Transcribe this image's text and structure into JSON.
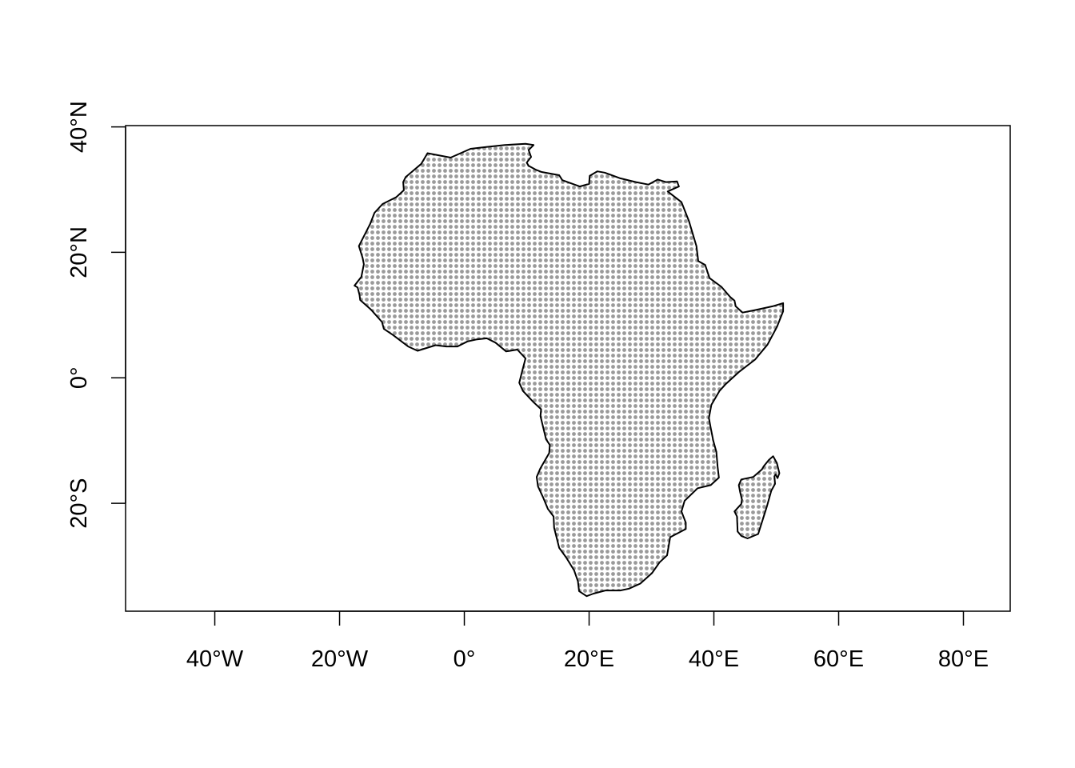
{
  "map": {
    "projection": "longitude-latitude",
    "x_range_degrees": [
      -54.3,
      87.5
    ],
    "y_range_degrees": [
      -37.2,
      40.2
    ],
    "fill_pattern": "dotted",
    "fill_color": "#9a9a9a",
    "outline_color": "#000000",
    "regions": [
      "Africa",
      "Madagascar"
    ],
    "x_ticks": [
      {
        "value": -40,
        "label": "40°W"
      },
      {
        "value": -20,
        "label": "20°W"
      },
      {
        "value": 0,
        "label": "0°"
      },
      {
        "value": 20,
        "label": "20°E"
      },
      {
        "value": 40,
        "label": "40°E"
      },
      {
        "value": 60,
        "label": "60°E"
      },
      {
        "value": 80,
        "label": "80°E"
      }
    ],
    "y_ticks": [
      {
        "value": 40,
        "label": "40°N"
      },
      {
        "value": 20,
        "label": "20°N"
      },
      {
        "value": 0,
        "label": "0°"
      },
      {
        "value": -20,
        "label": "20°S"
      }
    ],
    "africa_outline": [
      [
        -5.9,
        35.8
      ],
      [
        -2.2,
        35.1
      ],
      [
        1.0,
        36.5
      ],
      [
        3.5,
        36.8
      ],
      [
        6.5,
        37.1
      ],
      [
        9.8,
        37.3
      ],
      [
        11.1,
        37.1
      ],
      [
        10.3,
        36.3
      ],
      [
        10.7,
        35.2
      ],
      [
        10.0,
        34.3
      ],
      [
        10.3,
        33.8
      ],
      [
        11.4,
        33.2
      ],
      [
        12.4,
        32.8
      ],
      [
        15.2,
        32.3
      ],
      [
        15.7,
        31.5
      ],
      [
        18.5,
        30.5
      ],
      [
        20.0,
        30.9
      ],
      [
        20.1,
        32.2
      ],
      [
        21.3,
        32.9
      ],
      [
        22.5,
        32.7
      ],
      [
        25.0,
        31.8
      ],
      [
        27.5,
        31.2
      ],
      [
        29.5,
        30.8
      ],
      [
        31.0,
        31.6
      ],
      [
        32.3,
        31.2
      ],
      [
        34.1,
        31.3
      ],
      [
        34.4,
        30.5
      ],
      [
        32.6,
        29.7
      ],
      [
        34.8,
        28.0
      ],
      [
        36.0,
        25.0
      ],
      [
        37.2,
        21.0
      ],
      [
        37.5,
        18.6
      ],
      [
        38.6,
        18.0
      ],
      [
        39.3,
        15.9
      ],
      [
        41.2,
        14.5
      ],
      [
        42.6,
        12.9
      ],
      [
        43.3,
        12.3
      ],
      [
        43.5,
        11.4
      ],
      [
        44.6,
        10.4
      ],
      [
        46.6,
        10.8
      ],
      [
        49.4,
        11.4
      ],
      [
        51.1,
        11.9
      ],
      [
        51.1,
        10.6
      ],
      [
        50.1,
        8.1
      ],
      [
        48.6,
        5.3
      ],
      [
        46.6,
        2.9
      ],
      [
        44.1,
        1.0
      ],
      [
        41.9,
        -1.0
      ],
      [
        40.9,
        -2.1
      ],
      [
        39.6,
        -4.3
      ],
      [
        39.2,
        -6.4
      ],
      [
        39.5,
        -8.0
      ],
      [
        39.9,
        -10.0
      ],
      [
        40.4,
        -11.8
      ],
      [
        40.6,
        -14.2
      ],
      [
        40.8,
        -15.9
      ],
      [
        39.5,
        -17.1
      ],
      [
        37.4,
        -17.6
      ],
      [
        35.3,
        -19.6
      ],
      [
        34.8,
        -21.3
      ],
      [
        35.5,
        -23.1
      ],
      [
        35.5,
        -24.1
      ],
      [
        33.0,
        -25.4
      ],
      [
        32.5,
        -28.3
      ],
      [
        31.3,
        -29.4
      ],
      [
        30.1,
        -31.1
      ],
      [
        28.2,
        -32.8
      ],
      [
        26.4,
        -33.6
      ],
      [
        25.0,
        -33.9
      ],
      [
        22.6,
        -33.9
      ],
      [
        20.7,
        -34.4
      ],
      [
        19.6,
        -34.8
      ],
      [
        18.4,
        -34.0
      ],
      [
        18.2,
        -32.4
      ],
      [
        17.6,
        -30.7
      ],
      [
        16.3,
        -28.6
      ],
      [
        15.2,
        -27.1
      ],
      [
        14.4,
        -23.9
      ],
      [
        14.3,
        -22.1
      ],
      [
        13.4,
        -20.9
      ],
      [
        12.6,
        -19.0
      ],
      [
        11.8,
        -17.3
      ],
      [
        11.6,
        -15.8
      ],
      [
        12.2,
        -14.4
      ],
      [
        13.6,
        -12.0
      ],
      [
        13.7,
        -10.7
      ],
      [
        13.1,
        -9.8
      ],
      [
        12.2,
        -6.1
      ],
      [
        12.3,
        -5.0
      ],
      [
        11.1,
        -3.9
      ],
      [
        9.4,
        -2.1
      ],
      [
        8.8,
        -0.8
      ],
      [
        9.3,
        1.2
      ],
      [
        9.6,
        2.3
      ],
      [
        9.8,
        3.1
      ],
      [
        8.5,
        4.5
      ],
      [
        6.7,
        4.2
      ],
      [
        5.0,
        5.6
      ],
      [
        3.6,
        6.3
      ],
      [
        1.9,
        6.1
      ],
      [
        0.5,
        5.8
      ],
      [
        -1.1,
        5.0
      ],
      [
        -2.9,
        5.0
      ],
      [
        -4.6,
        5.2
      ],
      [
        -7.5,
        4.3
      ],
      [
        -9.0,
        5.0
      ],
      [
        -11.4,
        6.8
      ],
      [
        -12.9,
        7.8
      ],
      [
        -13.2,
        8.9
      ],
      [
        -14.8,
        10.7
      ],
      [
        -15.1,
        11.0
      ],
      [
        -16.7,
        12.4
      ],
      [
        -16.8,
        13.2
      ],
      [
        -17.1,
        14.4
      ],
      [
        -17.6,
        14.7
      ],
      [
        -16.5,
        16.1
      ],
      [
        -16.1,
        18.1
      ],
      [
        -16.3,
        19.1
      ],
      [
        -16.9,
        21.0
      ],
      [
        -15.1,
        24.5
      ],
      [
        -14.4,
        26.3
      ],
      [
        -13.1,
        27.7
      ],
      [
        -10.9,
        28.8
      ],
      [
        -9.7,
        29.9
      ],
      [
        -9.8,
        31.2
      ],
      [
        -9.4,
        32.0
      ],
      [
        -6.9,
        34.1
      ],
      [
        -5.9,
        35.8
      ]
    ],
    "madagascar_outline": [
      [
        49.5,
        -12.5
      ],
      [
        50.1,
        -13.6
      ],
      [
        50.5,
        -15.2
      ],
      [
        50.2,
        -16.0
      ],
      [
        49.9,
        -15.4
      ],
      [
        49.7,
        -15.7
      ],
      [
        49.8,
        -16.9
      ],
      [
        49.2,
        -18.0
      ],
      [
        48.5,
        -20.5
      ],
      [
        47.9,
        -22.4
      ],
      [
        47.1,
        -24.9
      ],
      [
        45.4,
        -25.6
      ],
      [
        44.4,
        -25.2
      ],
      [
        43.8,
        -24.5
      ],
      [
        43.7,
        -22.1
      ],
      [
        43.3,
        -21.3
      ],
      [
        44.4,
        -20.1
      ],
      [
        44.5,
        -19.4
      ],
      [
        44.2,
        -18.2
      ],
      [
        44.0,
        -17.1
      ],
      [
        44.4,
        -16.2
      ],
      [
        46.3,
        -15.8
      ],
      [
        47.7,
        -14.6
      ],
      [
        48.0,
        -14.1
      ],
      [
        48.8,
        -13.1
      ],
      [
        49.5,
        -12.5
      ]
    ]
  }
}
